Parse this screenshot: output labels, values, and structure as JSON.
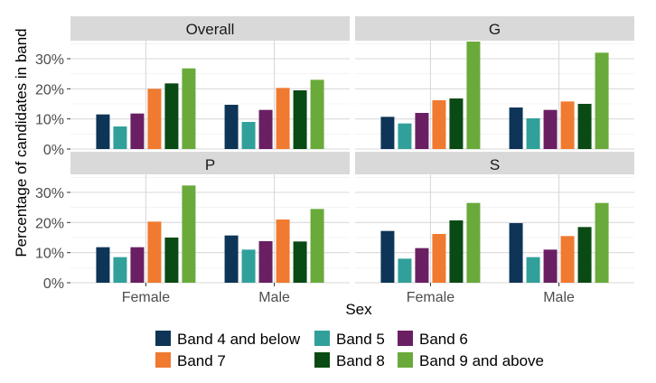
{
  "chart_data": {
    "type": "bar",
    "xlabel": "Sex",
    "ylabel": "Percentage of candidates in band",
    "categories": [
      "Female",
      "Male"
    ],
    "ylim": [
      0,
      36
    ],
    "yticks": [
      "0%",
      "10%",
      "20%",
      "30%"
    ],
    "grid": true,
    "legend_position": "bottom",
    "series": [
      {
        "name": "Band 4 and below",
        "color": "#0e3557"
      },
      {
        "name": "Band 5",
        "color": "#31a09a"
      },
      {
        "name": "Band 6",
        "color": "#6b1f63"
      },
      {
        "name": "Band 7",
        "color": "#f07a2f"
      },
      {
        "name": "Band 8",
        "color": "#0a4a14"
      },
      {
        "name": "Band 9 and above",
        "color": "#6aaa3b"
      }
    ],
    "facets": [
      {
        "title": "Overall",
        "values": {
          "Female": [
            11.5,
            7.5,
            11.8,
            20.0,
            21.8,
            26.8
          ],
          "Male": [
            14.7,
            9.0,
            13.0,
            20.3,
            19.5,
            23.0
          ]
        }
      },
      {
        "title": "G",
        "values": {
          "Female": [
            10.7,
            8.5,
            12.0,
            16.2,
            16.8,
            35.7
          ],
          "Male": [
            13.8,
            10.2,
            13.0,
            15.8,
            15.0,
            32.0
          ]
        }
      },
      {
        "title": "P",
        "values": {
          "Female": [
            11.8,
            8.5,
            11.8,
            20.3,
            15.0,
            32.3
          ],
          "Male": [
            15.7,
            11.0,
            13.8,
            21.0,
            13.7,
            24.5
          ]
        }
      },
      {
        "title": "S",
        "values": {
          "Female": [
            17.2,
            8.0,
            11.5,
            16.2,
            20.7,
            26.5
          ],
          "Male": [
            19.8,
            8.5,
            11.0,
            15.5,
            18.5,
            26.5
          ]
        }
      }
    ]
  }
}
